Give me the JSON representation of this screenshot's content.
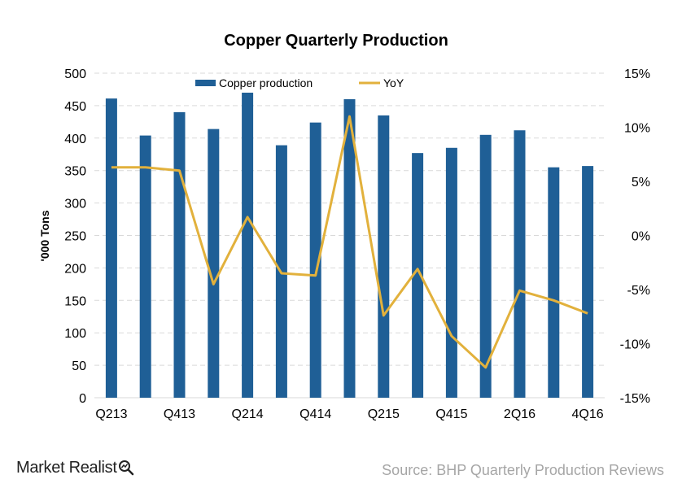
{
  "chart_data": {
    "type": "bar+line",
    "title": "Copper Quarterly Production",
    "ylabel": "'000 Tons",
    "ylim": [
      0,
      500
    ],
    "y_ticks": [
      "0",
      "50",
      "100",
      "150",
      "200",
      "250",
      "300",
      "350",
      "400",
      "450",
      "500"
    ],
    "y2lim": [
      -15,
      15
    ],
    "y2_ticks": [
      "-15%",
      "-10%",
      "-5%",
      "0%",
      "5%",
      "10%",
      "15%"
    ],
    "x_tick_labels": [
      "Q213",
      "Q413",
      "Q214",
      "Q414",
      "Q215",
      "Q415",
      "2Q16",
      "4Q16"
    ],
    "x_tick_label_indices": [
      0,
      2,
      4,
      6,
      8,
      10,
      12,
      14
    ],
    "categories_count": 15,
    "legend_position": "top-center",
    "grid": "horizontal-dashed",
    "series": [
      {
        "name": "Copper production",
        "type": "bar",
        "axis": "left",
        "color": "#1f5f96",
        "values": [
          461,
          404,
          440,
          414,
          470,
          389,
          424,
          460,
          435,
          377,
          385,
          405,
          412,
          355,
          357
        ]
      },
      {
        "name": "YoY",
        "type": "line",
        "axis": "right",
        "unit": "%",
        "color": "#e2b13c",
        "values": [
          6.3,
          6.3,
          6.0,
          -4.5,
          1.7,
          -3.5,
          -3.7,
          11.0,
          -7.4,
          -3.1,
          -9.3,
          -12.2,
          -5.1,
          -6.0,
          -7.2
        ]
      }
    ]
  },
  "branding": {
    "logo_text": "Market Realist",
    "source": "Source: BHP Quarterly Production Reviews"
  }
}
